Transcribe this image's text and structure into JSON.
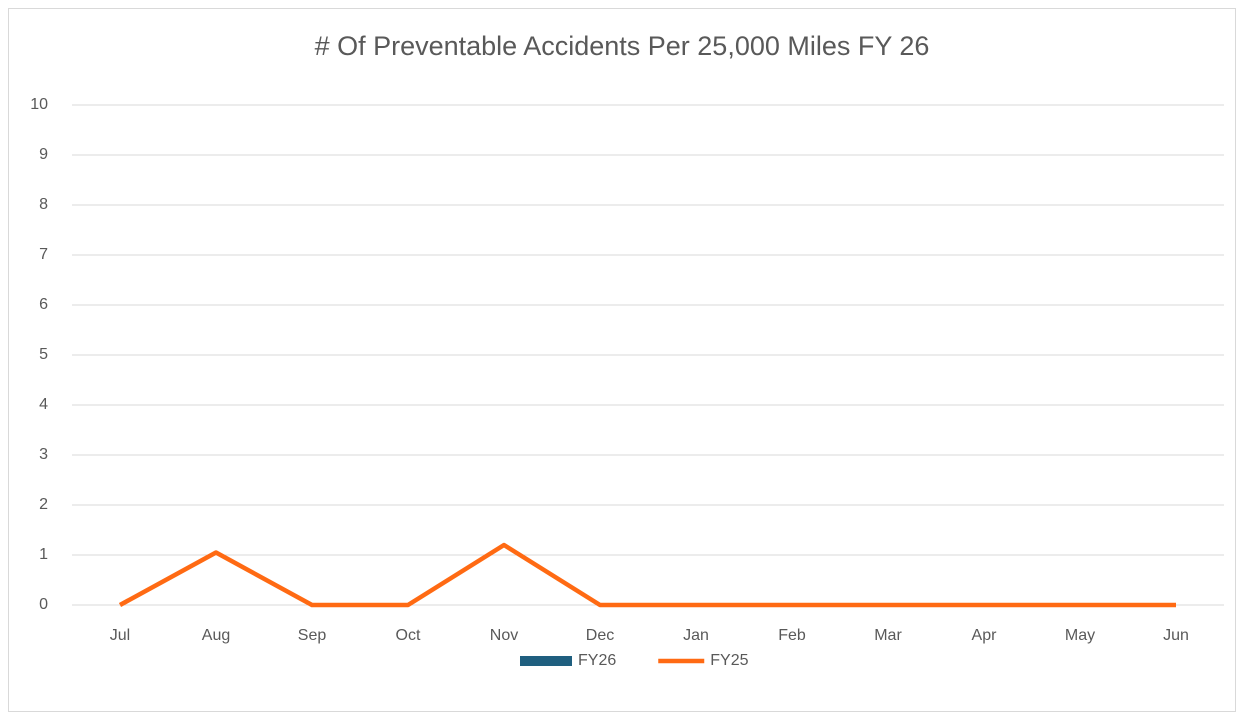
{
  "chart_data": {
    "type": "line",
    "title": "# Of Preventable Accidents Per 25,000 Miles FY 26",
    "categories": [
      "Jul",
      "Aug",
      "Sep",
      "Oct",
      "Nov",
      "Dec",
      "Jan",
      "Feb",
      "Mar",
      "Apr",
      "May",
      "Jun"
    ],
    "series": [
      {
        "name": "FY26",
        "type": "bar",
        "color": "#1f5f7f",
        "values": [
          null,
          null,
          null,
          null,
          null,
          null,
          null,
          null,
          null,
          null,
          null,
          null
        ]
      },
      {
        "name": "FY25",
        "type": "line",
        "color": "#ff6a13",
        "values": [
          0,
          1.05,
          0,
          0,
          1.2,
          0,
          0,
          0,
          0,
          0,
          0,
          0
        ]
      }
    ],
    "ylim": [
      0,
      10
    ],
    "yticks": [
      0,
      1,
      2,
      3,
      4,
      5,
      6,
      7,
      8,
      9,
      10
    ],
    "grid": true,
    "legend": "bottom"
  }
}
